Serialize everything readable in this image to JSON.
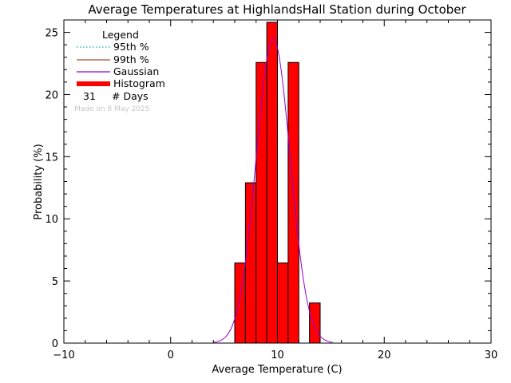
{
  "chart_data": {
    "type": "bar",
    "title": "Average Temperatures at HighlandsHall Station during October",
    "xlabel": "Average Temperature (C)",
    "ylabel": "Probability (%)",
    "xlim": [
      -10,
      30
    ],
    "ylim": [
      0,
      26
    ],
    "x_ticks": [
      -10,
      0,
      10,
      20,
      30
    ],
    "y_ticks": [
      0,
      5,
      10,
      15,
      20,
      25
    ],
    "histogram": {
      "bin_width": 1,
      "bins": [
        {
          "x0": 6,
          "x1": 7,
          "value": 6.45
        },
        {
          "x0": 7,
          "x1": 8,
          "value": 12.9
        },
        {
          "x0": 8,
          "x1": 9,
          "value": 22.58
        },
        {
          "x0": 9,
          "x1": 10,
          "value": 25.81
        },
        {
          "x0": 10,
          "x1": 11,
          "value": 6.45
        },
        {
          "x0": 11,
          "x1": 12,
          "value": 22.58
        },
        {
          "x0": 12,
          "x1": 13,
          "value": 0
        },
        {
          "x0": 13,
          "x1": 14,
          "value": 3.23
        }
      ],
      "color": "#ff0000"
    },
    "gaussian": {
      "mean": 9.6,
      "sigma": 1.6,
      "peak": 24.5,
      "color": "#9400d3"
    },
    "legend": {
      "title": "Legend",
      "placement": "top-left",
      "entries": [
        {
          "label": "95th %",
          "style": "dotted",
          "color": "#00b0b0"
        },
        {
          "label": "99th %",
          "style": "solid",
          "color": "#a0522d"
        },
        {
          "label": "Gaussian",
          "style": "solid",
          "color": "#9400d3"
        },
        {
          "label": "Histogram",
          "style": "thick",
          "color": "#ff0000"
        }
      ],
      "days_count": "31",
      "days_label": "# Days"
    },
    "made_on": "Made on 8 May 2025"
  }
}
